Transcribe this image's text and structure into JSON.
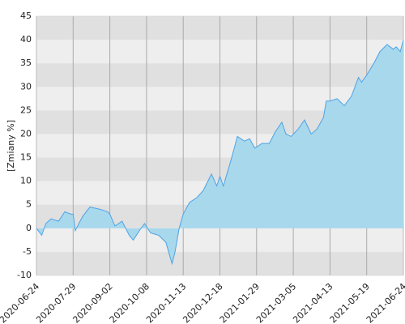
{
  "chart_data": {
    "type": "area",
    "y_label": "[Zmiany %]",
    "x": [
      "2020-06-24",
      "2020-06-29",
      "2020-07-03",
      "2020-07-08",
      "2020-07-15",
      "2020-07-21",
      "2020-07-27",
      "2020-07-29",
      "2020-07-31",
      "2020-08-07",
      "2020-08-14",
      "2020-08-24",
      "2020-08-31",
      "2020-09-02",
      "2020-09-07",
      "2020-09-14",
      "2020-09-21",
      "2020-09-25",
      "2020-10-01",
      "2020-10-06",
      "2020-10-12",
      "2020-10-20",
      "2020-10-27",
      "2020-11-02",
      "2020-11-05",
      "2020-11-09",
      "2020-11-13",
      "2020-11-19",
      "2020-11-26",
      "2020-12-02",
      "2020-12-10",
      "2020-12-15",
      "2020-12-18",
      "2020-12-22",
      "2020-12-30",
      "2021-01-07",
      "2021-01-15",
      "2021-01-21",
      "2021-01-27",
      "2021-02-03",
      "2021-02-10",
      "2021-02-16",
      "2021-02-22",
      "2021-02-26",
      "2021-03-03",
      "2021-03-10",
      "2021-03-17",
      "2021-03-24",
      "2021-03-30",
      "2021-04-06",
      "2021-04-09",
      "2021-04-13",
      "2021-04-20",
      "2021-04-27",
      "2021-05-04",
      "2021-05-11",
      "2021-05-14",
      "2021-05-19",
      "2021-05-26",
      "2021-06-01",
      "2021-06-08",
      "2021-06-14",
      "2021-06-17",
      "2021-06-21",
      "2021-06-24"
    ],
    "series": [
      {
        "color": "#4da3e6",
        "fill": "#a8d8ec",
        "values": [
          0,
          -1.5,
          1,
          2,
          1.5,
          3.5,
          3,
          3,
          -0.5,
          2.5,
          4.5,
          4,
          3.5,
          3,
          0.5,
          1.5,
          -1.5,
          -2.5,
          -0.5,
          1,
          -1,
          -1.5,
          -3,
          -7.5,
          -5,
          0,
          3,
          5.5,
          6.5,
          8,
          11.5,
          9,
          11,
          9,
          14,
          19.5,
          18.5,
          19,
          17,
          18,
          18,
          20.5,
          22.5,
          20,
          19.5,
          21,
          23,
          20,
          21,
          23.5,
          27,
          27,
          27.5,
          26,
          28,
          32,
          31,
          32.5,
          35,
          37.5,
          39,
          38,
          38.5,
          37.5,
          40
        ]
      }
    ],
    "xticks": [
      "2020-06-24",
      "2020-07-29",
      "2020-09-02",
      "2020-10-08",
      "2020-11-13",
      "2020-12-18",
      "2021-01-29",
      "2021-03-05",
      "2021-04-13",
      "2021-05-19",
      "2021-06-24"
    ],
    "xlim": [
      "2020-06-24",
      "2021-06-24"
    ],
    "ylim": [
      -10,
      45
    ],
    "yticks": [
      -10,
      -5,
      0,
      5,
      10,
      15,
      20,
      25,
      30,
      35,
      40,
      45
    ],
    "grid": true,
    "band_colors": [
      "#e0e0e0",
      "#eeeeee"
    ]
  }
}
